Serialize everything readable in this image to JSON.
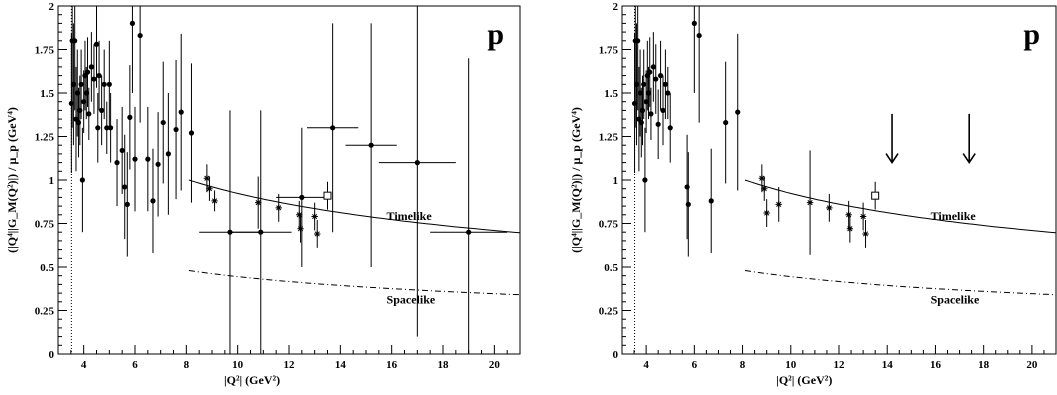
{
  "chart_data": [
    {
      "type": "scatter",
      "panel_label": "p",
      "xlabel": "|Q²|  (GeV²)",
      "ylabel": "(|Q⁴||G_M(Q²)|) / μ_p   (GeV⁴)",
      "xlim": [
        3,
        21
      ],
      "ylim": [
        0,
        2
      ],
      "x_ticks": [
        "4",
        "6",
        "8",
        "10",
        "12",
        "14",
        "16",
        "18",
        "20"
      ],
      "y_ticks": [
        "0",
        "0.25",
        "0.5",
        "0.75",
        "1",
        "1.25",
        "1.5",
        "1.75",
        "2"
      ],
      "threshold_x": 3.52,
      "annotations": [
        "Timelike",
        "Spacelike"
      ],
      "series": [
        {
          "marker": "dot",
          "points": [
            [
              3.52,
              1.44,
              0.4
            ],
            [
              3.55,
              1.8,
              0.5
            ],
            [
              3.6,
              1.55,
              0.35
            ],
            [
              3.65,
              1.8,
              0.4
            ],
            [
              3.7,
              1.35,
              0.3
            ],
            [
              3.75,
              1.5,
              0.25
            ],
            [
              3.8,
              1.33,
              0.2
            ],
            [
              3.85,
              1.4,
              0.2
            ],
            [
              3.9,
              1.55,
              0.2
            ],
            [
              3.95,
              1.0,
              0.3
            ],
            [
              4.0,
              1.45,
              0.18
            ],
            [
              4.05,
              1.6,
              0.2
            ],
            [
              4.1,
              1.5,
              0.15
            ],
            [
              4.15,
              1.62,
              0.2
            ],
            [
              4.2,
              1.38,
              0.15
            ],
            [
              4.3,
              1.65,
              0.2
            ],
            [
              4.4,
              1.58,
              0.2
            ],
            [
              4.5,
              1.78,
              0.25
            ],
            [
              4.55,
              1.3,
              0.2
            ],
            [
              4.6,
              1.6,
              0.2
            ],
            [
              4.7,
              1.4,
              0.2
            ],
            [
              4.8,
              1.55,
              0.2
            ],
            [
              4.9,
              1.3,
              0.15
            ],
            [
              5.0,
              1.55,
              0.25
            ],
            [
              5.05,
              1.3,
              0.2
            ],
            [
              5.3,
              1.1,
              0.25
            ],
            [
              5.5,
              1.17,
              0.25
            ],
            [
              5.6,
              0.96,
              0.3
            ],
            [
              5.7,
              0.86,
              0.3
            ],
            [
              5.8,
              1.36,
              0.3
            ],
            [
              5.9,
              1.9,
              0.4
            ],
            [
              6.0,
              1.12,
              0.3
            ],
            [
              6.2,
              1.83,
              0.5
            ],
            [
              6.5,
              1.12,
              0.3
            ],
            [
              6.7,
              0.88,
              0.3
            ],
            [
              6.9,
              1.09,
              0.3
            ],
            [
              7.1,
              1.33,
              0.35
            ],
            [
              7.3,
              1.15,
              0.35
            ],
            [
              7.6,
              1.29,
              0.4
            ],
            [
              7.8,
              1.39,
              0.45
            ],
            [
              8.2,
              1.27,
              0.4
            ]
          ]
        },
        {
          "marker": "dot-xerr",
          "points": [
            [
              9.7,
              0.7,
              0.7,
              1.2
            ],
            [
              10.9,
              0.7,
              0.7,
              1.2
            ],
            [
              13.7,
              1.3,
              0.6,
              1.0
            ],
            [
              15.2,
              1.2,
              0.7,
              1.0
            ],
            [
              17.0,
              1.1,
              1.0,
              1.5
            ],
            [
              19.0,
              0.7,
              1.0,
              1.5
            ],
            [
              12.5,
              0.9,
              0.4,
              1.0
            ]
          ]
        },
        {
          "marker": "star",
          "points": [
            [
              8.8,
              1.01,
              0.08
            ],
            [
              8.9,
              0.95,
              0.07
            ],
            [
              9.1,
              0.88,
              0.06
            ],
            [
              10.8,
              0.87,
              0.15
            ],
            [
              11.6,
              0.84,
              0.08
            ],
            [
              12.4,
              0.8,
              0.08
            ],
            [
              12.45,
              0.72,
              0.08
            ],
            [
              13.0,
              0.79,
              0.08
            ],
            [
              13.1,
              0.69,
              0.08
            ]
          ]
        },
        {
          "marker": "open-square",
          "points": [
            [
              13.5,
              0.91,
              0.08
            ]
          ]
        }
      ]
    },
    {
      "type": "scatter",
      "panel_label": "p",
      "xlabel": "|Q²|  (GeV²)",
      "ylabel": "(|Q⁴||G_M(Q²)|) / μ_p   (GeV⁴)",
      "xlim": [
        3,
        21
      ],
      "ylim": [
        0,
        2
      ],
      "x_ticks": [
        "4",
        "6",
        "8",
        "10",
        "12",
        "14",
        "16",
        "18",
        "20"
      ],
      "y_ticks": [
        "0",
        "0.25",
        "0.5",
        "0.75",
        "1",
        "1.25",
        "1.5",
        "1.75",
        "2"
      ],
      "threshold_x": 3.52,
      "annotations": [
        "Timelike",
        "Spacelike"
      ],
      "arrows_x": [
        14.2,
        17.4
      ],
      "series": [
        {
          "marker": "dot",
          "points": [
            [
              3.52,
              1.44,
              0.4
            ],
            [
              3.55,
              1.8,
              0.5
            ],
            [
              3.6,
              1.55,
              0.35
            ],
            [
              3.65,
              1.8,
              0.4
            ],
            [
              3.7,
              1.35,
              0.3
            ],
            [
              3.75,
              1.5,
              0.25
            ],
            [
              3.8,
              1.33,
              0.2
            ],
            [
              3.85,
              1.4,
              0.2
            ],
            [
              3.9,
              1.55,
              0.2
            ],
            [
              3.95,
              1.0,
              0.3
            ],
            [
              4.0,
              1.45,
              0.18
            ],
            [
              4.05,
              1.6,
              0.2
            ],
            [
              4.1,
              1.5,
              0.15
            ],
            [
              4.15,
              1.62,
              0.2
            ],
            [
              4.2,
              1.38,
              0.15
            ],
            [
              4.3,
              1.65,
              0.2
            ],
            [
              4.4,
              1.58,
              0.2
            ],
            [
              4.5,
              1.32,
              0.2
            ],
            [
              4.6,
              1.6,
              0.2
            ],
            [
              4.7,
              1.4,
              0.2
            ],
            [
              4.8,
              1.55,
              0.2
            ],
            [
              4.9,
              1.5,
              0.15
            ],
            [
              5.0,
              1.3,
              0.2
            ],
            [
              5.7,
              0.96,
              0.3
            ],
            [
              5.75,
              0.86,
              0.3
            ],
            [
              6.0,
              1.9,
              0.4
            ],
            [
              6.2,
              1.83,
              0.5
            ],
            [
              6.7,
              0.88,
              0.3
            ],
            [
              7.3,
              1.33,
              0.35
            ],
            [
              7.8,
              1.39,
              0.45
            ]
          ]
        },
        {
          "marker": "star",
          "points": [
            [
              8.8,
              1.01,
              0.08
            ],
            [
              8.9,
              0.95,
              0.07
            ],
            [
              9.0,
              0.81,
              0.08
            ],
            [
              9.5,
              0.86,
              0.1
            ],
            [
              10.8,
              0.87,
              0.3
            ],
            [
              11.6,
              0.84,
              0.08
            ],
            [
              12.4,
              0.8,
              0.08
            ],
            [
              12.45,
              0.72,
              0.08
            ],
            [
              13.0,
              0.79,
              0.08
            ],
            [
              13.1,
              0.69,
              0.08
            ]
          ]
        },
        {
          "marker": "open-square",
          "points": [
            [
              13.5,
              0.91,
              0.08
            ]
          ]
        }
      ]
    }
  ]
}
